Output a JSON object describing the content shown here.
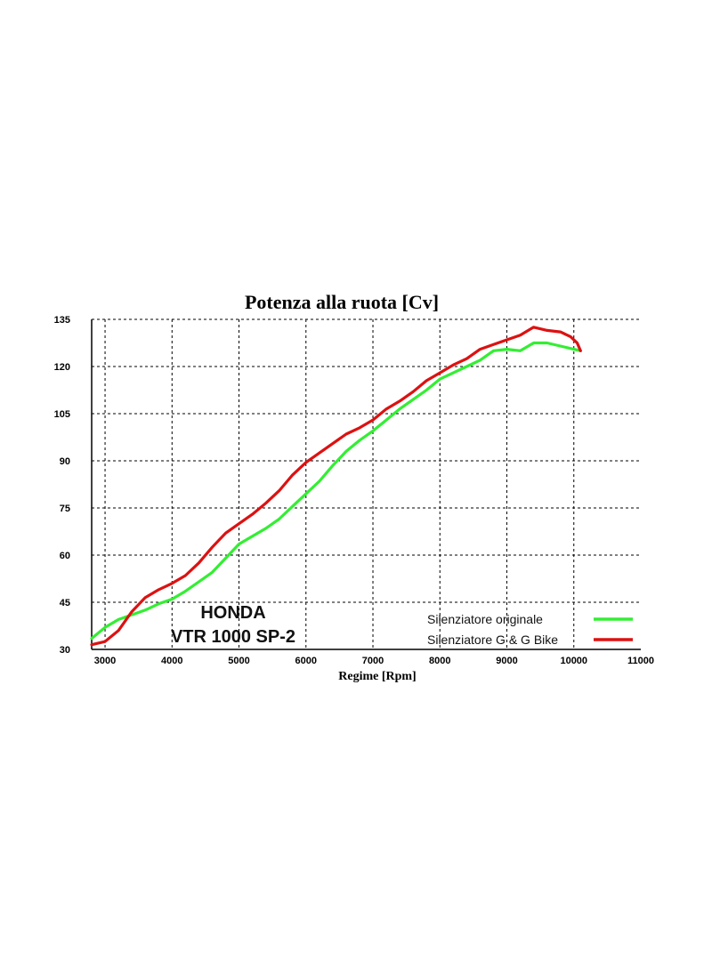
{
  "chart_data": {
    "type": "line",
    "title": "Potenza alla ruota [Cv]",
    "xlabel": "Regime [Rpm]",
    "ylabel": "",
    "xlim": [
      2800,
      11000
    ],
    "ylim": [
      30,
      135
    ],
    "x_ticks": [
      "3000",
      "4000",
      "5000",
      "6000",
      "7000",
      "8000",
      "9000",
      "10000",
      "11000"
    ],
    "y_ticks": [
      "30",
      "45",
      "60",
      "75",
      "90",
      "105",
      "120",
      "135"
    ],
    "grid": true,
    "legend_position": "bottom-right",
    "annotations": [
      "HONDA",
      "VTR 1000 SP-2"
    ],
    "series": [
      {
        "name": "Silenziatore originale",
        "color": "#33ee33",
        "points": [
          [
            2800,
            33.5
          ],
          [
            3000,
            37
          ],
          [
            3200,
            39.5
          ],
          [
            3400,
            41
          ],
          [
            3600,
            42.5
          ],
          [
            3800,
            44.5
          ],
          [
            4000,
            46
          ],
          [
            4200,
            48.5
          ],
          [
            4400,
            51.5
          ],
          [
            4600,
            54.5
          ],
          [
            4800,
            59
          ],
          [
            5000,
            63.5
          ],
          [
            5200,
            66
          ],
          [
            5400,
            68.5
          ],
          [
            5600,
            71.5
          ],
          [
            5800,
            75.5
          ],
          [
            6000,
            79.5
          ],
          [
            6200,
            83.5
          ],
          [
            6400,
            88.5
          ],
          [
            6600,
            93
          ],
          [
            6800,
            96.5
          ],
          [
            7000,
            99.5
          ],
          [
            7200,
            103
          ],
          [
            7400,
            106.5
          ],
          [
            7600,
            109.5
          ],
          [
            7800,
            112.5
          ],
          [
            8000,
            116
          ],
          [
            8200,
            118
          ],
          [
            8400,
            120
          ],
          [
            8600,
            122
          ],
          [
            8800,
            125
          ],
          [
            9000,
            125.5
          ],
          [
            9200,
            125
          ],
          [
            9400,
            127.5
          ],
          [
            9600,
            127.5
          ],
          [
            9800,
            126.5
          ],
          [
            10000,
            125.5
          ],
          [
            10100,
            125
          ]
        ]
      },
      {
        "name": "Silenziatore G & G Bike",
        "color": "#dd1111",
        "points": [
          [
            2800,
            31.5
          ],
          [
            3000,
            32.5
          ],
          [
            3200,
            36
          ],
          [
            3400,
            42
          ],
          [
            3600,
            46.5
          ],
          [
            3800,
            49
          ],
          [
            4000,
            51
          ],
          [
            4200,
            53.5
          ],
          [
            4400,
            57.5
          ],
          [
            4600,
            62.5
          ],
          [
            4800,
            67
          ],
          [
            5000,
            70
          ],
          [
            5200,
            73
          ],
          [
            5400,
            76.5
          ],
          [
            5600,
            80.5
          ],
          [
            5800,
            85.5
          ],
          [
            6000,
            89.5
          ],
          [
            6200,
            92.5
          ],
          [
            6400,
            95.5
          ],
          [
            6600,
            98.5
          ],
          [
            6800,
            100.5
          ],
          [
            7000,
            103
          ],
          [
            7200,
            106.5
          ],
          [
            7400,
            109
          ],
          [
            7600,
            112
          ],
          [
            7800,
            115.5
          ],
          [
            8000,
            118
          ],
          [
            8200,
            120.5
          ],
          [
            8400,
            122.5
          ],
          [
            8600,
            125.5
          ],
          [
            8800,
            127
          ],
          [
            9000,
            128.5
          ],
          [
            9200,
            130
          ],
          [
            9400,
            132.5
          ],
          [
            9600,
            131.5
          ],
          [
            9800,
            131
          ],
          [
            9950,
            129.5
          ],
          [
            10050,
            127.5
          ],
          [
            10100,
            125
          ]
        ]
      }
    ]
  }
}
